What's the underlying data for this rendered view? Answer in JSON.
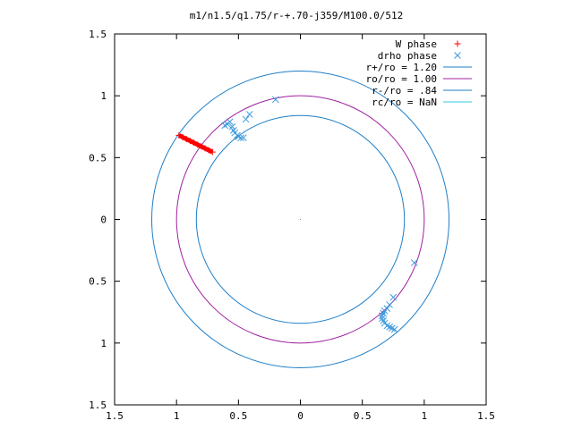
{
  "chart_data": {
    "type": "scatter",
    "title": "m1/n1.5/q1.75/r-+.70-j359/M100.0/512",
    "xlim": [
      -1.5,
      1.5
    ],
    "ylim": [
      -1.5,
      1.5
    ],
    "x_ticks": [
      -1.5,
      -1,
      -0.5,
      0,
      0.5,
      1,
      1.5
    ],
    "y_ticks": [
      -1.5,
      -1,
      -0.5,
      0,
      0.5,
      1,
      1.5
    ],
    "x_tick_labels": [
      "1.5",
      "1",
      "0.5",
      "0",
      "0.5",
      "1",
      "1.5"
    ],
    "y_tick_labels": [
      "1.5",
      "1",
      "0.5",
      "0",
      "0.5",
      "1",
      "1.5"
    ],
    "grid": false,
    "legend_position": "top-right",
    "series": [
      {
        "name": "W phase",
        "kind": "points",
        "marker": "+",
        "color": "#ff0000",
        "x": [
          -0.98,
          -0.95,
          -0.92,
          -0.89,
          -0.86,
          -0.83,
          -0.8,
          -0.77,
          -0.74,
          -0.71
        ],
        "y": [
          0.68,
          0.665,
          0.65,
          0.635,
          0.62,
          0.605,
          0.59,
          0.575,
          0.56,
          0.545
        ]
      },
      {
        "name": "drho phase",
        "kind": "points",
        "marker": "x",
        "color": "#3c9adc",
        "x": [
          -0.61,
          -0.59,
          -0.57,
          -0.55,
          -0.54,
          -0.53,
          -0.51,
          -0.5,
          -0.48,
          -0.46,
          -0.44,
          -0.41,
          -0.2,
          0.92,
          0.75,
          0.72,
          0.7,
          0.68,
          0.67,
          0.66,
          0.66,
          0.67,
          0.68,
          0.7,
          0.72,
          0.74,
          0.76
        ],
        "y": [
          0.76,
          0.77,
          0.79,
          0.75,
          0.72,
          0.7,
          0.68,
          0.67,
          0.66,
          0.66,
          0.81,
          0.85,
          0.97,
          -0.35,
          -0.63,
          -0.69,
          -0.72,
          -0.74,
          -0.76,
          -0.78,
          -0.8,
          -0.82,
          -0.84,
          -0.86,
          -0.87,
          -0.88,
          -0.89
        ]
      },
      {
        "name": "r+/ro = 1.20",
        "kind": "circle",
        "radius": 1.2,
        "color": "#1e7fc8"
      },
      {
        "name": "ro/ro = 1.00",
        "kind": "circle",
        "radius": 1.0,
        "color": "#a020a0"
      },
      {
        "name": "r-/ro =  .84",
        "kind": "circle",
        "radius": 0.84,
        "color": "#1e7fc8"
      },
      {
        "name": "rc/ro = NaN",
        "kind": "circle",
        "radius": null,
        "color": "#30c8e0"
      }
    ]
  }
}
